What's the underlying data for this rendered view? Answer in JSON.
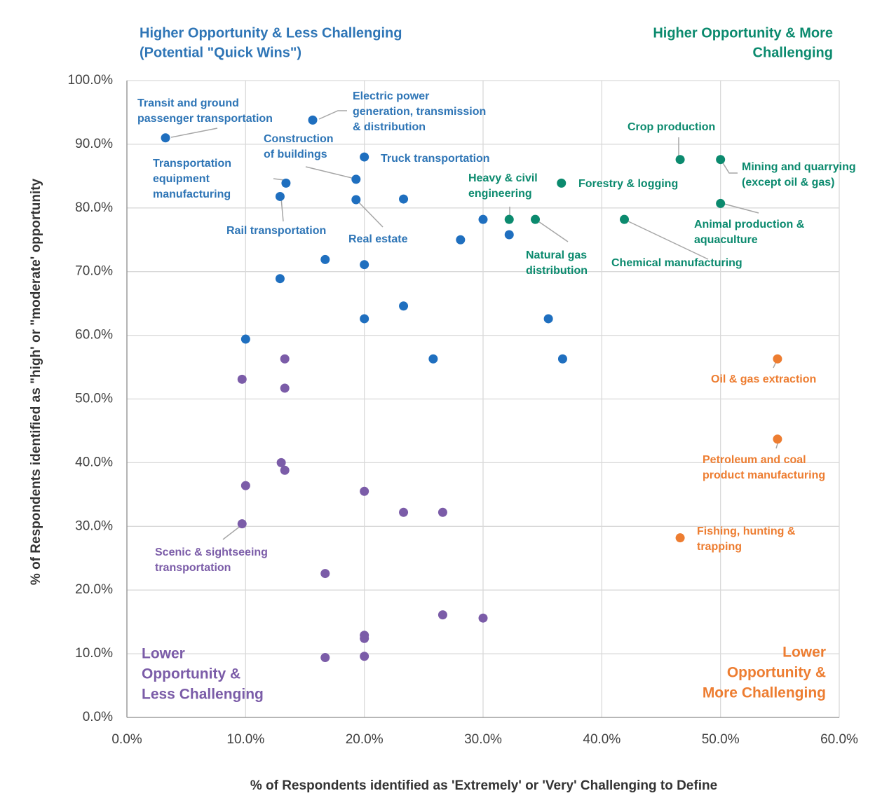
{
  "chart_data": {
    "type": "scatter",
    "xlabel": "% of Respondents identified as 'Extremely' or 'Very' Challenging to Define",
    "ylabel": "% of Respondents identified as \"high' or \"moderate' opportunity",
    "xlim": [
      0,
      60
    ],
    "ylim": [
      0,
      100
    ],
    "xticks": [
      {
        "value": 0,
        "label": "0.0%"
      },
      {
        "value": 10,
        "label": "10.0%"
      },
      {
        "value": 20,
        "label": "20.0%"
      },
      {
        "value": 30,
        "label": "30.0%"
      },
      {
        "value": 40,
        "label": "40.0%"
      },
      {
        "value": 50,
        "label": "50.0%"
      },
      {
        "value": 60,
        "label": "60.0%"
      }
    ],
    "yticks": [
      {
        "value": 0,
        "label": "0.0%"
      },
      {
        "value": 10,
        "label": "10.0%"
      },
      {
        "value": 20,
        "label": "20.0%"
      },
      {
        "value": 30,
        "label": "30.0%"
      },
      {
        "value": 40,
        "label": "40.0%"
      },
      {
        "value": 50,
        "label": "50.0%"
      },
      {
        "value": 60,
        "label": "60.0%"
      },
      {
        "value": 70,
        "label": "70.0%"
      },
      {
        "value": 80,
        "label": "80.0%"
      },
      {
        "value": 90,
        "label": "90.0%"
      },
      {
        "value": 100,
        "label": "100.0%"
      }
    ],
    "grid": true,
    "series": [
      {
        "color": "#1f6fbf",
        "x": [
          3.25,
          15.65,
          20.0,
          19.3,
          13.4,
          12.9,
          19.3,
          23.3,
          30.0,
          28.1,
          32.2,
          16.7,
          20.0,
          12.9,
          23.3,
          20.0,
          35.5,
          10.0,
          25.8,
          36.7
        ],
        "values": [
          91.0,
          93.8,
          88.0,
          84.5,
          83.9,
          81.8,
          81.3,
          81.4,
          78.2,
          75.0,
          75.8,
          71.9,
          71.1,
          68.9,
          64.6,
          62.6,
          62.6,
          59.4,
          56.3,
          56.3
        ]
      },
      {
        "color": "#0b8a6e",
        "x": [
          32.2,
          34.4,
          36.6,
          46.6,
          50.0,
          50.0,
          41.9
        ],
        "values": [
          78.2,
          78.2,
          83.9,
          87.6,
          87.6,
          80.7,
          78.2
        ]
      },
      {
        "color": "#ed7d31",
        "x": [
          54.8,
          54.8,
          46.6
        ],
        "values": [
          56.3,
          43.7,
          28.2
        ]
      },
      {
        "color": "#7b5ca8",
        "x": [
          13.3,
          9.7,
          13.3,
          13.0,
          13.3,
          10.0,
          20.0,
          23.3,
          26.6,
          9.7,
          16.7,
          26.6,
          30.0,
          20.0,
          20.0,
          16.7,
          20.0
        ],
        "values": [
          56.3,
          53.1,
          51.7,
          40.0,
          38.8,
          36.4,
          35.5,
          32.2,
          32.2,
          30.4,
          22.6,
          16.1,
          15.6,
          12.9,
          12.4,
          9.4,
          9.6
        ]
      }
    ],
    "annotations": [
      {
        "text": [
          "Transit and ground",
          "passenger transportation"
        ],
        "color": "#2e75b6"
      },
      {
        "text": [
          "Electric power",
          "generation, transmission",
          "& distribution"
        ],
        "color": "#2e75b6"
      },
      {
        "text": [
          "Construction",
          "of buildings"
        ],
        "color": "#2e75b6"
      },
      {
        "text": [
          "Truck transportation"
        ],
        "color": "#2e75b6"
      },
      {
        "text": [
          "Transportation",
          "equipment",
          "manufacturing"
        ],
        "color": "#2e75b6"
      },
      {
        "text": [
          "Rail transportation"
        ],
        "color": "#2e75b6"
      },
      {
        "text": [
          "Real estate"
        ],
        "color": "#2e75b6"
      },
      {
        "text": [
          "Heavy & civil",
          "engineering"
        ],
        "color": "#0b8a6e"
      },
      {
        "text": [
          "Forestry & logging"
        ],
        "color": "#0b8a6e"
      },
      {
        "text": [
          "Crop production"
        ],
        "color": "#0b8a6e"
      },
      {
        "text": [
          "Mining and quarrying",
          "(except oil & gas)"
        ],
        "color": "#0b8a6e"
      },
      {
        "text": [
          "Animal production &",
          "aquaculture"
        ],
        "color": "#0b8a6e"
      },
      {
        "text": [
          "Natural gas",
          "distribution"
        ],
        "color": "#0b8a6e"
      },
      {
        "text": [
          "Chemical manufacturing"
        ],
        "color": "#0b8a6e"
      },
      {
        "text": [
          "Oil & gas extraction"
        ],
        "color": "#ed7d31"
      },
      {
        "text": [
          "Petroleum and coal",
          "product manufacturing"
        ],
        "color": "#ed7d31"
      },
      {
        "text": [
          "Fishing, hunting &",
          "trapping"
        ],
        "color": "#ed7d31"
      },
      {
        "text": [
          "Scenic & sightseeing",
          "transportation"
        ],
        "color": "#7b5ca8"
      }
    ],
    "quadrant_labels": [
      {
        "text": [
          "Higher Opportunity & Less Challenging",
          "(Potential \"Quick Wins\")"
        ],
        "color": "#2e75b6"
      },
      {
        "text": [
          "Higher Opportunity & More",
          "Challenging"
        ],
        "color": "#0b8a6e"
      },
      {
        "text": [
          "Lower",
          "Opportunity &",
          "Less  Challenging"
        ],
        "color": "#7b5ca8"
      },
      {
        "text": [
          "Lower",
          "Opportunity &",
          "More Challenging"
        ],
        "color": "#ed7d31"
      }
    ]
  }
}
